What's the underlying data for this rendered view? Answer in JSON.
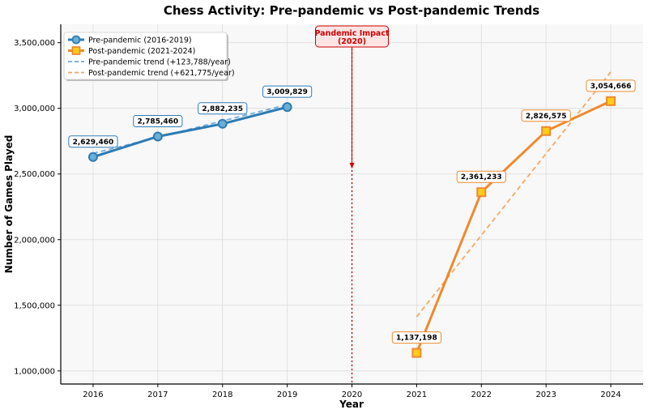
{
  "chart_data": {
    "type": "line",
    "title": "Chess Activity: Pre-pandemic vs Post-pandemic Trends",
    "xlabel": "Year",
    "ylabel": "Number of Games Played",
    "x_ticks": [
      "2016",
      "2017",
      "2018",
      "2019",
      "2020",
      "2021",
      "2022",
      "2023",
      "2024"
    ],
    "y_ticks": [
      "1,000,000",
      "1,500,000",
      "2,000,000",
      "2,500,000",
      "3,000,000",
      "3,500,000"
    ],
    "y_tick_values": [
      1000000,
      1500000,
      2000000,
      2500000,
      3000000,
      3500000
    ],
    "xlim": [
      2015.5,
      2024.5
    ],
    "ylim": [
      900000,
      3640000
    ],
    "grid": true,
    "legend_position": "top-left",
    "series": [
      {
        "name": "Pre-pandemic (2016-2019)",
        "x": [
          2016,
          2017,
          2018,
          2019
        ],
        "values": [
          2629460,
          2785460,
          2882235,
          3009829
        ],
        "labels": [
          "2,629,460",
          "2,785,460",
          "2,882,235",
          "3,009,829"
        ],
        "color": "#2e7bb3",
        "marker_fill": "#6baed6",
        "marker": "circle"
      },
      {
        "name": "Post-pandemic (2021-2024)",
        "x": [
          2021,
          2022,
          2023,
          2024
        ],
        "values": [
          1137198,
          2361233,
          2826575,
          3054666
        ],
        "labels": [
          "1,137,198",
          "2,361,233",
          "2,826,575",
          "3,054,666"
        ],
        "color": "#ee8a2e",
        "marker_fill": "#ffcc1a",
        "marker": "square"
      }
    ],
    "trends": [
      {
        "name": "Pre-pandemic trend (+123,788/year)",
        "x": [
          2016,
          2019
        ],
        "values": [
          2656558,
          3027922
        ],
        "color": "#6aa9e0"
      },
      {
        "name": "Post-pandemic trend (+621,775/year)",
        "x": [
          2021,
          2024
        ],
        "values": [
          1411605,
          3276930
        ],
        "color": "#f5a55a"
      }
    ],
    "annotation": {
      "text_lines": [
        "Pandemic Impact",
        "(2020)"
      ],
      "x": 2020,
      "color": "#cc0000"
    }
  }
}
